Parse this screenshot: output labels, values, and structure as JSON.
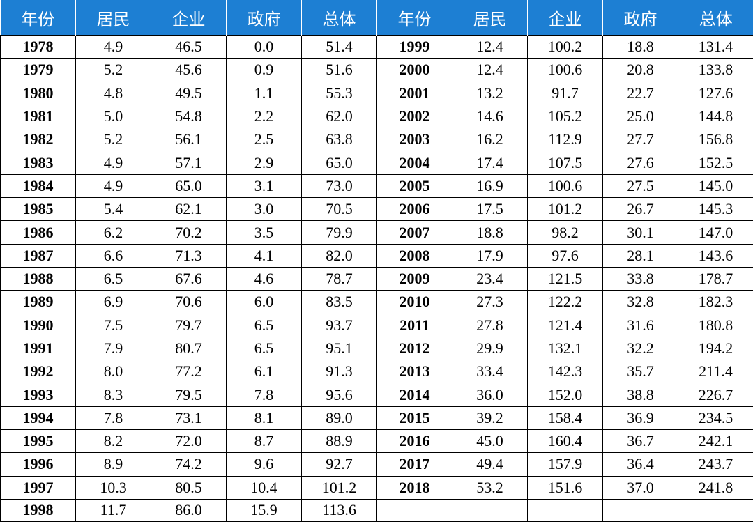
{
  "headers": [
    "年份",
    "居民",
    "企业",
    "政府",
    "总体",
    "年份",
    "居民",
    "企业",
    "政府",
    "总体"
  ],
  "rows": [
    [
      "1978",
      "4.9",
      "46.5",
      "0.0",
      "51.4",
      "1999",
      "12.4",
      "100.2",
      "18.8",
      "131.4"
    ],
    [
      "1979",
      "5.2",
      "45.6",
      "0.9",
      "51.6",
      "2000",
      "12.4",
      "100.6",
      "20.8",
      "133.8"
    ],
    [
      "1980",
      "4.8",
      "49.5",
      "1.1",
      "55.3",
      "2001",
      "13.2",
      "91.7",
      "22.7",
      "127.6"
    ],
    [
      "1981",
      "5.0",
      "54.8",
      "2.2",
      "62.0",
      "2002",
      "14.6",
      "105.2",
      "25.0",
      "144.8"
    ],
    [
      "1982",
      "5.2",
      "56.1",
      "2.5",
      "63.8",
      "2003",
      "16.2",
      "112.9",
      "27.7",
      "156.8"
    ],
    [
      "1983",
      "4.9",
      "57.1",
      "2.9",
      "65.0",
      "2004",
      "17.4",
      "107.5",
      "27.6",
      "152.5"
    ],
    [
      "1984",
      "4.9",
      "65.0",
      "3.1",
      "73.0",
      "2005",
      "16.9",
      "100.6",
      "27.5",
      "145.0"
    ],
    [
      "1985",
      "5.4",
      "62.1",
      "3.0",
      "70.5",
      "2006",
      "17.5",
      "101.2",
      "26.7",
      "145.3"
    ],
    [
      "1986",
      "6.2",
      "70.2",
      "3.5",
      "79.9",
      "2007",
      "18.8",
      "98.2",
      "30.1",
      "147.0"
    ],
    [
      "1987",
      "6.6",
      "71.3",
      "4.1",
      "82.0",
      "2008",
      "17.9",
      "97.6",
      "28.1",
      "143.6"
    ],
    [
      "1988",
      "6.5",
      "67.6",
      "4.6",
      "78.7",
      "2009",
      "23.4",
      "121.5",
      "33.8",
      "178.7"
    ],
    [
      "1989",
      "6.9",
      "70.6",
      "6.0",
      "83.5",
      "2010",
      "27.3",
      "122.2",
      "32.8",
      "182.3"
    ],
    [
      "1990",
      "7.5",
      "79.7",
      "6.5",
      "93.7",
      "2011",
      "27.8",
      "121.4",
      "31.6",
      "180.8"
    ],
    [
      "1991",
      "7.9",
      "80.7",
      "6.5",
      "95.1",
      "2012",
      "29.9",
      "132.1",
      "32.2",
      "194.2"
    ],
    [
      "1992",
      "8.0",
      "77.2",
      "6.1",
      "91.3",
      "2013",
      "33.4",
      "142.3",
      "35.7",
      "211.4"
    ],
    [
      "1993",
      "8.3",
      "79.5",
      "7.8",
      "95.6",
      "2014",
      "36.0",
      "152.0",
      "38.8",
      "226.7"
    ],
    [
      "1994",
      "7.8",
      "73.1",
      "8.1",
      "89.0",
      "2015",
      "39.2",
      "158.4",
      "36.9",
      "234.5"
    ],
    [
      "1995",
      "8.2",
      "72.0",
      "8.7",
      "88.9",
      "2016",
      "45.0",
      "160.4",
      "36.7",
      "242.1"
    ],
    [
      "1996",
      "8.9",
      "74.2",
      "9.6",
      "92.7",
      "2017",
      "49.4",
      "157.9",
      "36.4",
      "243.7"
    ],
    [
      "1997",
      "10.3",
      "80.5",
      "10.4",
      "101.2",
      "2018",
      "53.2",
      "151.6",
      "37.0",
      "241.8"
    ],
    [
      "1998",
      "11.7",
      "86.0",
      "15.9",
      "113.6",
      "",
      "",
      "",
      "",
      ""
    ]
  ]
}
